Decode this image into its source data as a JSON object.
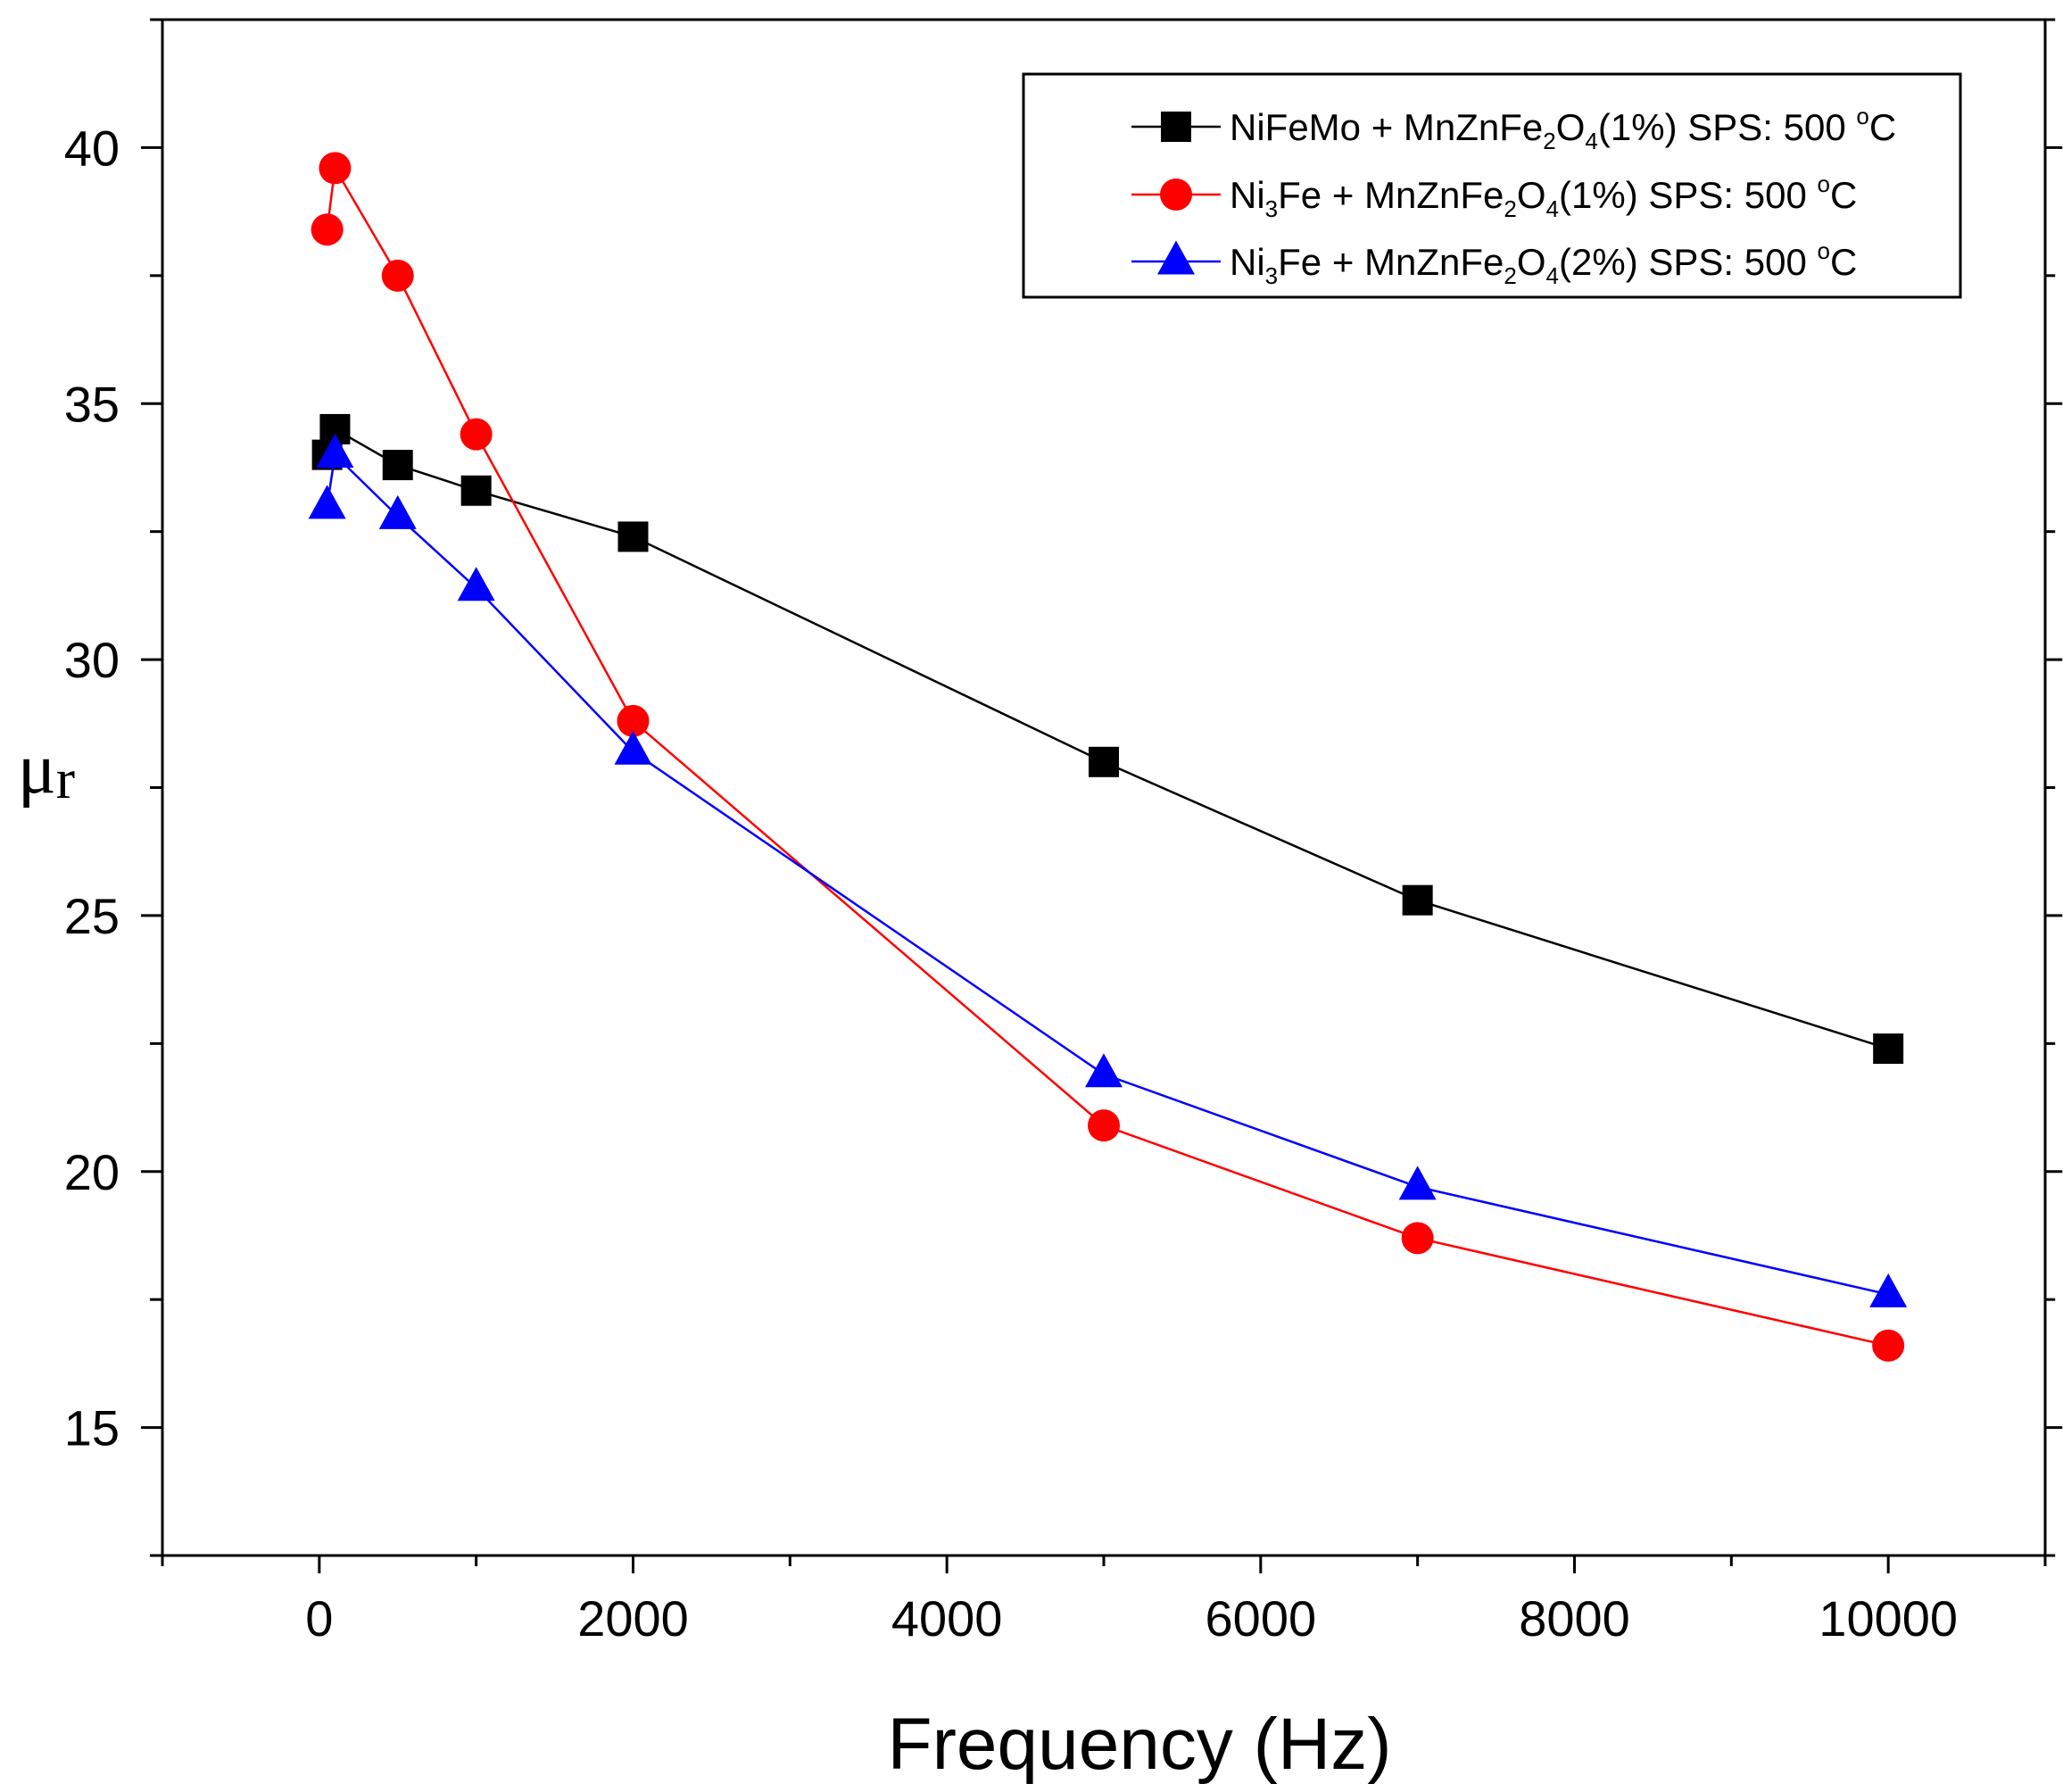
{
  "chart_data": {
    "type": "line",
    "title": "",
    "xlabel": "Frequency (Hz)",
    "ylabel": {
      "main": "μ",
      "sub": "r"
    },
    "xlim": [
      -1000,
      11000
    ],
    "ylim": [
      12.5,
      42.5
    ],
    "xticks": [
      0,
      2000,
      4000,
      6000,
      8000,
      10000
    ],
    "yticks": [
      15,
      20,
      25,
      30,
      35,
      40
    ],
    "grid": false,
    "legend": "top-right",
    "series": [
      {
        "label_parts": [
          [
            "NiFeMo + MnZnFe",
            ""
          ],
          [
            "2",
            "sub"
          ],
          [
            "O",
            ""
          ],
          [
            "4",
            "sub"
          ],
          [
            "(1%) SPS: 500 ",
            ""
          ],
          [
            "o",
            "sup"
          ],
          [
            "C",
            ""
          ]
        ],
        "color": "#000000",
        "marker": "square",
        "x": [
          50,
          100,
          500,
          1000,
          2000,
          5000,
          7000,
          10000
        ],
        "y": [
          34.0,
          34.5,
          33.8,
          33.3,
          32.4,
          28.0,
          25.3,
          22.4
        ]
      },
      {
        "label_parts": [
          [
            "Ni",
            ""
          ],
          [
            "3",
            "sub"
          ],
          [
            "Fe + MnZnFe",
            ""
          ],
          [
            "2",
            "sub"
          ],
          [
            "O",
            ""
          ],
          [
            "4",
            "sub"
          ],
          [
            "(1%) SPS: 500 ",
            ""
          ],
          [
            "o",
            "sup"
          ],
          [
            "C",
            ""
          ]
        ],
        "color": "#ff0000",
        "marker": "circle",
        "x": [
          50,
          100,
          500,
          1000,
          2000,
          5000,
          7000,
          10000
        ],
        "y": [
          38.4,
          39.6,
          37.5,
          34.4,
          28.8,
          20.9,
          18.7,
          16.6
        ]
      },
      {
        "label_parts": [
          [
            "Ni",
            ""
          ],
          [
            "3",
            "sub"
          ],
          [
            "Fe + MnZnFe",
            ""
          ],
          [
            "2",
            "sub"
          ],
          [
            "O",
            ""
          ],
          [
            "4",
            "sub"
          ],
          [
            "(2%) SPS: 500 ",
            ""
          ],
          [
            "o",
            "sup"
          ],
          [
            "C",
            ""
          ]
        ],
        "color": "#0000ff",
        "marker": "triangle",
        "x": [
          50,
          100,
          500,
          1000,
          2000,
          5000,
          7000,
          10000
        ],
        "y": [
          33.0,
          34.0,
          32.8,
          31.4,
          28.2,
          21.9,
          19.7,
          17.6
        ]
      }
    ]
  }
}
